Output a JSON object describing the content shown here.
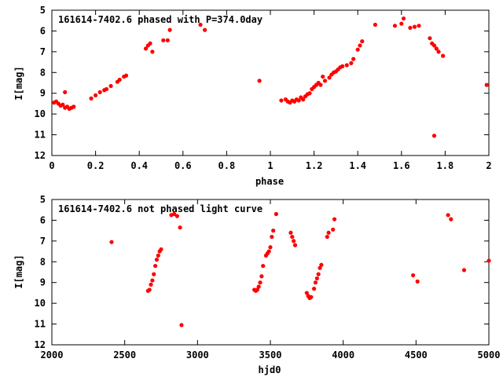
{
  "chart_data": [
    {
      "type": "scatter",
      "title": "161614-7402.6 phased with P=374.0day",
      "xlabel": "phase",
      "ylabel": "I[mag]",
      "xlim": [
        0,
        2
      ],
      "ylim": [
        12,
        5
      ],
      "y_inverted": true,
      "xticks": [
        "0",
        "0.2",
        "0.4",
        "0.6",
        "0.8",
        "1",
        "1.2",
        "1.4",
        "1.6",
        "1.8",
        "2"
      ],
      "yticks": [
        "5",
        "6",
        "7",
        "8",
        "9",
        "10",
        "11",
        "12"
      ],
      "marker_color": "#ff0000",
      "grid": false,
      "series": [
        {
          "points": [
            [
              0.01,
              9.45
            ],
            [
              0.02,
              9.4
            ],
            [
              0.03,
              9.5
            ],
            [
              0.04,
              9.6
            ],
            [
              0.05,
              9.55
            ],
            [
              0.06,
              9.7
            ],
            [
              0.07,
              9.65
            ],
            [
              0.08,
              9.75
            ],
            [
              0.09,
              9.7
            ],
            [
              0.1,
              9.65
            ],
            [
              0.06,
              8.95
            ],
            [
              0.18,
              9.25
            ],
            [
              0.2,
              9.1
            ],
            [
              0.22,
              8.95
            ],
            [
              0.24,
              8.85
            ],
            [
              0.25,
              8.8
            ],
            [
              0.27,
              8.65
            ],
            [
              0.3,
              8.45
            ],
            [
              0.31,
              8.35
            ],
            [
              0.33,
              8.2
            ],
            [
              0.34,
              8.15
            ],
            [
              0.43,
              6.85
            ],
            [
              0.44,
              6.7
            ],
            [
              0.45,
              6.6
            ],
            [
              0.46,
              7.0
            ],
            [
              0.51,
              6.45
            ],
            [
              0.53,
              6.45
            ],
            [
              0.54,
              5.95
            ],
            [
              0.68,
              5.7
            ],
            [
              0.7,
              5.95
            ],
            [
              0.95,
              8.4
            ],
            [
              1.05,
              9.35
            ],
            [
              1.07,
              9.3
            ],
            [
              1.08,
              9.4
            ],
            [
              1.09,
              9.45
            ],
            [
              1.1,
              9.35
            ],
            [
              1.11,
              9.4
            ],
            [
              1.12,
              9.3
            ],
            [
              1.13,
              9.35
            ],
            [
              1.14,
              9.2
            ],
            [
              1.15,
              9.3
            ],
            [
              1.16,
              9.15
            ],
            [
              1.17,
              9.05
            ],
            [
              1.18,
              9.0
            ],
            [
              1.19,
              8.8
            ],
            [
              1.2,
              8.7
            ],
            [
              1.21,
              8.6
            ],
            [
              1.22,
              8.5
            ],
            [
              1.23,
              8.6
            ],
            [
              1.24,
              8.2
            ],
            [
              1.25,
              8.4
            ],
            [
              1.27,
              8.25
            ],
            [
              1.28,
              8.1
            ],
            [
              1.29,
              8.0
            ],
            [
              1.3,
              7.95
            ],
            [
              1.31,
              7.85
            ],
            [
              1.32,
              7.75
            ],
            [
              1.33,
              7.7
            ],
            [
              1.35,
              7.65
            ],
            [
              1.37,
              7.55
            ],
            [
              1.38,
              7.35
            ],
            [
              1.4,
              6.9
            ],
            [
              1.41,
              6.7
            ],
            [
              1.42,
              6.5
            ],
            [
              1.48,
              5.7
            ],
            [
              1.57,
              5.75
            ],
            [
              1.6,
              5.65
            ],
            [
              1.61,
              5.4
            ],
            [
              1.64,
              5.85
            ],
            [
              1.66,
              5.8
            ],
            [
              1.68,
              5.75
            ],
            [
              1.73,
              6.35
            ],
            [
              1.74,
              6.6
            ],
            [
              1.75,
              6.7
            ],
            [
              1.76,
              6.85
            ],
            [
              1.77,
              7.0
            ],
            [
              1.79,
              7.2
            ],
            [
              1.75,
              11.05
            ],
            [
              1.99,
              8.6
            ]
          ]
        }
      ]
    },
    {
      "type": "scatter",
      "title": "161614-7402.6 not phased light curve",
      "xlabel": "hjd0",
      "ylabel": "I[mag]",
      "xlim": [
        2000,
        5000
      ],
      "ylim": [
        12,
        5
      ],
      "y_inverted": true,
      "xticks": [
        "2000",
        "2500",
        "3000",
        "3500",
        "4000",
        "4500",
        "5000"
      ],
      "yticks": [
        "5",
        "6",
        "7",
        "8",
        "9",
        "10",
        "11",
        "12"
      ],
      "marker_color": "#ff0000",
      "grid": false,
      "series": [
        {
          "points": [
            [
              2410,
              7.05
            ],
            [
              2660,
              9.4
            ],
            [
              2670,
              9.35
            ],
            [
              2680,
              9.1
            ],
            [
              2690,
              8.9
            ],
            [
              2700,
              8.6
            ],
            [
              2710,
              8.2
            ],
            [
              2720,
              7.9
            ],
            [
              2730,
              7.7
            ],
            [
              2740,
              7.5
            ],
            [
              2750,
              7.4
            ],
            [
              2820,
              5.75
            ],
            [
              2840,
              5.7
            ],
            [
              2860,
              5.8
            ],
            [
              2880,
              6.35
            ],
            [
              2890,
              11.05
            ],
            [
              3390,
              9.35
            ],
            [
              3400,
              9.4
            ],
            [
              3410,
              9.35
            ],
            [
              3420,
              9.2
            ],
            [
              3430,
              9.0
            ],
            [
              3440,
              8.7
            ],
            [
              3450,
              8.2
            ],
            [
              3470,
              7.7
            ],
            [
              3480,
              7.6
            ],
            [
              3490,
              7.5
            ],
            [
              3500,
              7.3
            ],
            [
              3510,
              6.8
            ],
            [
              3520,
              6.5
            ],
            [
              3540,
              5.7
            ],
            [
              3640,
              6.6
            ],
            [
              3650,
              6.8
            ],
            [
              3660,
              7.0
            ],
            [
              3670,
              7.2
            ],
            [
              3750,
              9.5
            ],
            [
              3760,
              9.65
            ],
            [
              3770,
              9.75
            ],
            [
              3780,
              9.7
            ],
            [
              3800,
              9.3
            ],
            [
              3810,
              9.0
            ],
            [
              3820,
              8.8
            ],
            [
              3830,
              8.6
            ],
            [
              3840,
              8.3
            ],
            [
              3850,
              8.15
            ],
            [
              3890,
              6.8
            ],
            [
              3900,
              6.6
            ],
            [
              3930,
              6.45
            ],
            [
              3940,
              5.95
            ],
            [
              4480,
              8.65
            ],
            [
              4510,
              8.95
            ],
            [
              4720,
              5.75
            ],
            [
              4740,
              5.95
            ],
            [
              4830,
              8.4
            ],
            [
              5000,
              7.95
            ]
          ]
        }
      ]
    }
  ]
}
